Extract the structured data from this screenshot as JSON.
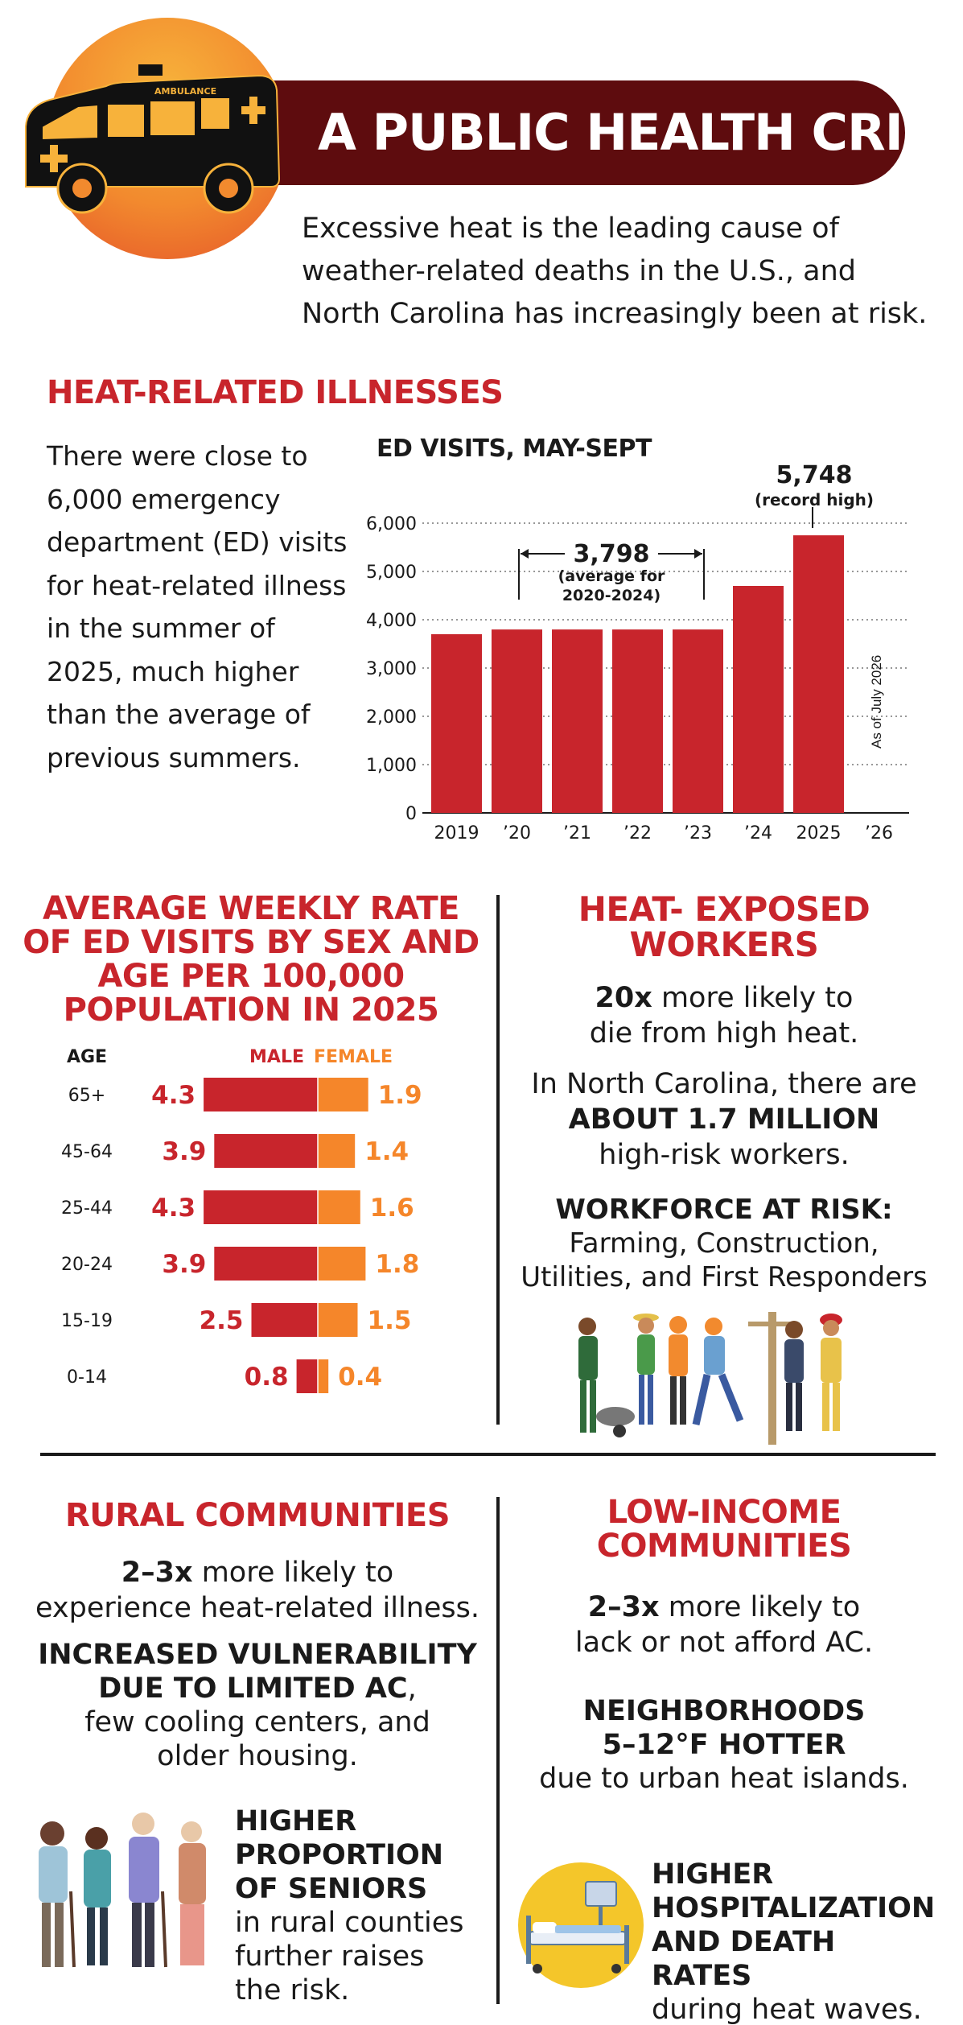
{
  "header": {
    "title": "A PUBLIC HEALTH CRISIS",
    "intro": "Excessive heat is the leading cause of weather-related deaths in the U.S., and North Carolina has increasingly been at risk.",
    "ambulance_label": "AMBULANCE"
  },
  "heat_illnesses": {
    "heading": "HEAT-RELATED ILLNESSES",
    "text": "There were close to 6,000 emergency department (ED) visits for heat-related illness in the summer of 2025, much higher than the average of previous summers."
  },
  "chart_data": [
    {
      "type": "bar",
      "title": "ED VISITS, MAY-SEPT",
      "categories": [
        "2019",
        "’20",
        "’21",
        "’22",
        "’23",
        "’24",
        "2025",
        "’26"
      ],
      "values": [
        3700,
        3798,
        3798,
        3798,
        3798,
        4700,
        5748,
        null
      ],
      "ylim": [
        0,
        6000
      ],
      "yticks": [
        "0",
        "1,000",
        "2,000",
        "3,000",
        "4,000",
        "5,000",
        "6,000"
      ],
      "grid": "dotted horizontal",
      "annotations": {
        "record_value": "5,748",
        "record_note": "(record high)",
        "average_value": "3,798",
        "average_note_1": "(average for",
        "average_note_2": "2020-2024)",
        "partial_note": "As of July 2026"
      },
      "colors": {
        "bar": "#c8252c"
      }
    },
    {
      "type": "bar",
      "title": "AVERAGE WEEKLY RATE OF ED VISITS BY SEX AND AGE PER 100,000 POPULATION IN 2025",
      "age_header": "AGE",
      "categories": [
        "65+",
        "45-64",
        "25-44",
        "20-24",
        "15-19",
        "0-14"
      ],
      "series": [
        {
          "name": "MALE",
          "values": [
            4.3,
            3.9,
            4.3,
            3.9,
            2.5,
            0.8
          ],
          "labels": [
            "4.3",
            "3.9",
            "4.3",
            "3.9",
            "2.5",
            "0.8"
          ],
          "color": "#c8252c"
        },
        {
          "name": "FEMALE",
          "values": [
            1.9,
            1.4,
            1.6,
            1.8,
            1.5,
            0.4
          ],
          "labels": [
            "1.9",
            "1.4",
            "1.6",
            "1.8",
            "1.5",
            "0.4"
          ],
          "color": "#f5862a"
        }
      ]
    }
  ],
  "workers": {
    "heading": "HEAT- EXPOSED WORKERS",
    "stat_bold": "20x",
    "stat_line1": " more likely to",
    "stat_line2": "die from high heat.",
    "nc_line1": "In North Carolina, there are",
    "nc_bold": "ABOUT 1.7 MILLION",
    "nc_line3": "high-risk workers.",
    "risk_bold": "WORKFORCE AT RISK:",
    "risk_line1": "Farming, Construction,",
    "risk_line2": "Utilities, and First Responders"
  },
  "rural": {
    "heading": "RURAL COMMUNITIES",
    "stat_bold": "2–3x",
    "stat_line1": " more likely to",
    "stat_line2": "experience heat-related illness.",
    "vuln_bold1": "INCREASED VULNERABILITY",
    "vuln_bold2": "DUE TO LIMITED AC",
    "vuln_comma": ",",
    "vuln_line3": "few cooling centers, and",
    "vuln_line4": "older housing.",
    "seniors_bold1": "HIGHER",
    "seniors_bold2": "PROPORTION",
    "seniors_bold3": "OF SENIORS",
    "seniors_line4": "in rural counties",
    "seniors_line5": "further raises",
    "seniors_line6": "the risk."
  },
  "low_income": {
    "heading": "LOW-INCOME COMMUNITIES",
    "stat_bold": "2–3x",
    "stat_line1": " more likely to",
    "stat_line2": "lack or not afford AC.",
    "nb_bold1": "NEIGHBORHOODS",
    "nb_bold2": "5–12°F HOTTER",
    "nb_line3": "due to urban heat islands.",
    "hosp_bold1": "HIGHER",
    "hosp_bold2": "HOSPITALIZATION",
    "hosp_bold3": "AND DEATH RATES",
    "hosp_line4": "during heat waves."
  },
  "colors": {
    "red": "#c8252c",
    "orange": "#f5862a",
    "maroon": "#5e0c0e",
    "yellow": "#f4c62a"
  }
}
